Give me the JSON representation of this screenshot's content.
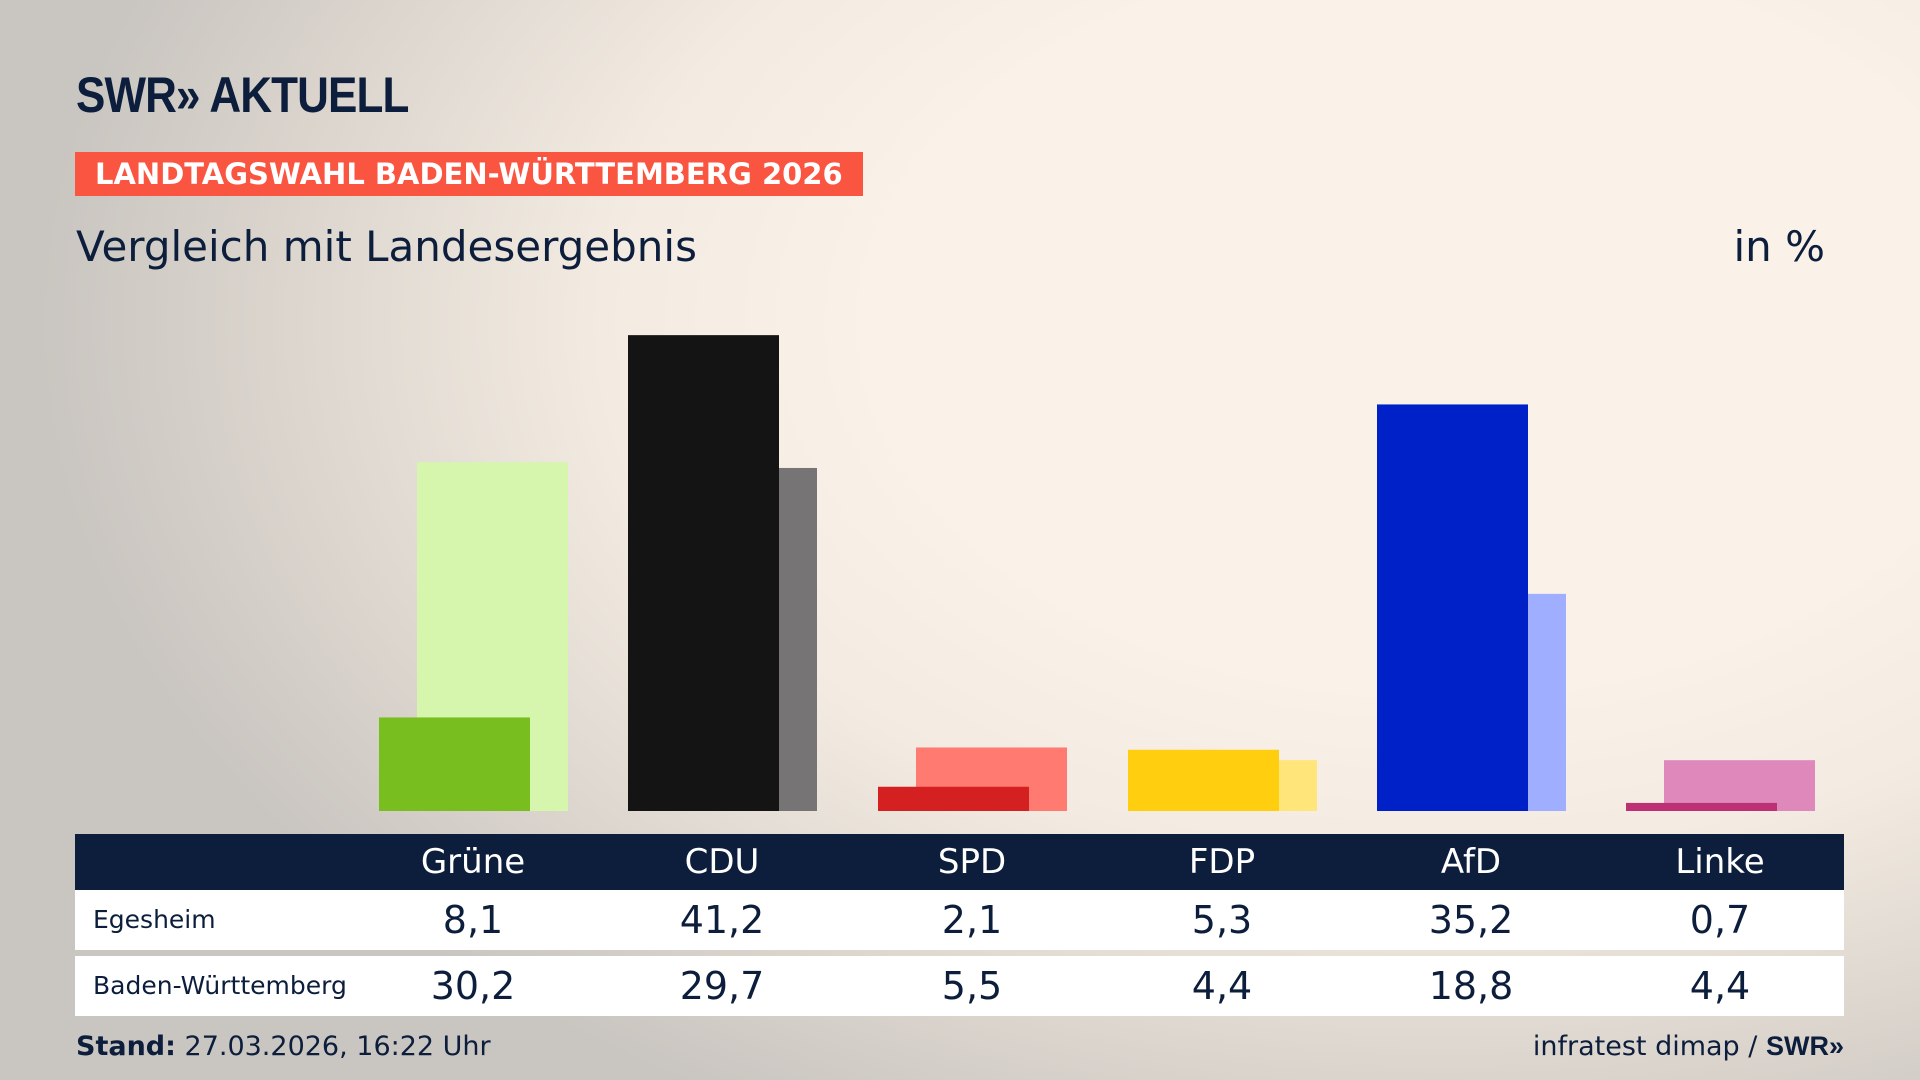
{
  "header": {
    "logo": "SWR» AKTUELL",
    "banner": "LANDTAGSWAHL BADEN-WÜRTTEMBERG 2026",
    "subtitle": "Vergleich mit Landesergebnis",
    "unit": "in %"
  },
  "chart_data": {
    "type": "bar",
    "categories": [
      "Grüne",
      "CDU",
      "SPD",
      "FDP",
      "AfD",
      "Linke"
    ],
    "series": [
      {
        "name": "Egesheim",
        "values": [
          8.1,
          41.2,
          2.1,
          5.3,
          35.2,
          0.7
        ],
        "colors": [
          "#78be1e",
          "#141414",
          "#d42020",
          "#ffcf0f",
          "#0020c8",
          "#be3075"
        ]
      },
      {
        "name": "Baden-Württemberg",
        "values": [
          30.2,
          29.7,
          5.5,
          4.4,
          18.8,
          4.4
        ],
        "colors": [
          "#d6f5ad",
          "#767474",
          "#ff7b72",
          "#ffe57a",
          "#a0aeff",
          "#de88bb"
        ]
      }
    ],
    "ylabel": "in %"
  },
  "table": {
    "headers": [
      "Grüne",
      "CDU",
      "SPD",
      "FDP",
      "AfD",
      "Linke"
    ],
    "rows": [
      {
        "label": "Egesheim",
        "values": [
          "8,1",
          "41,2",
          "2,1",
          "5,3",
          "35,2",
          "0,7"
        ]
      },
      {
        "label": "Baden-Württemberg",
        "values": [
          "30,2",
          "29,7",
          "5,5",
          "4,4",
          "18,8",
          "4,4"
        ]
      }
    ]
  },
  "footer": {
    "stand_label": "Stand:",
    "stand_value": "27.03.2026, 16:22 Uhr",
    "source": "infratest dimap /",
    "source_logo": "SWR»"
  },
  "colors": {
    "navy": "#0c1e3c",
    "accent": "#fa5541"
  }
}
